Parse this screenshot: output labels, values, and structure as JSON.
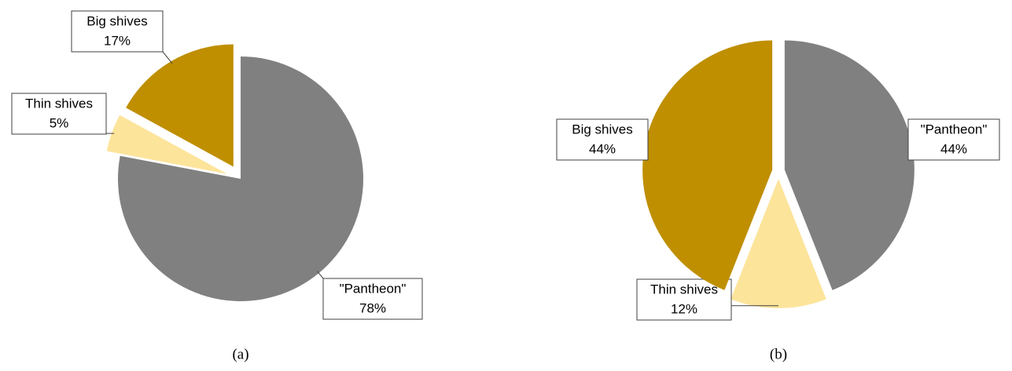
{
  "chart_data": [
    {
      "type": "pie",
      "caption": "(a)",
      "categories": [
        "\"Pantheon\"",
        "Thin shives",
        "Big shives"
      ],
      "values": [
        78,
        5,
        17
      ],
      "value_labels": [
        "78%",
        "5%",
        "17%"
      ],
      "colors": [
        "#808080",
        "#fce49b",
        "#bf8f00"
      ]
    },
    {
      "type": "pie",
      "caption": "(b)",
      "categories": [
        "\"Pantheon\"",
        "Thin shives",
        "Big shives"
      ],
      "values": [
        44,
        12,
        44
      ],
      "value_labels": [
        "44%",
        "12%",
        "44%"
      ],
      "colors": [
        "#808080",
        "#fce49b",
        "#bf8f00"
      ]
    }
  ]
}
